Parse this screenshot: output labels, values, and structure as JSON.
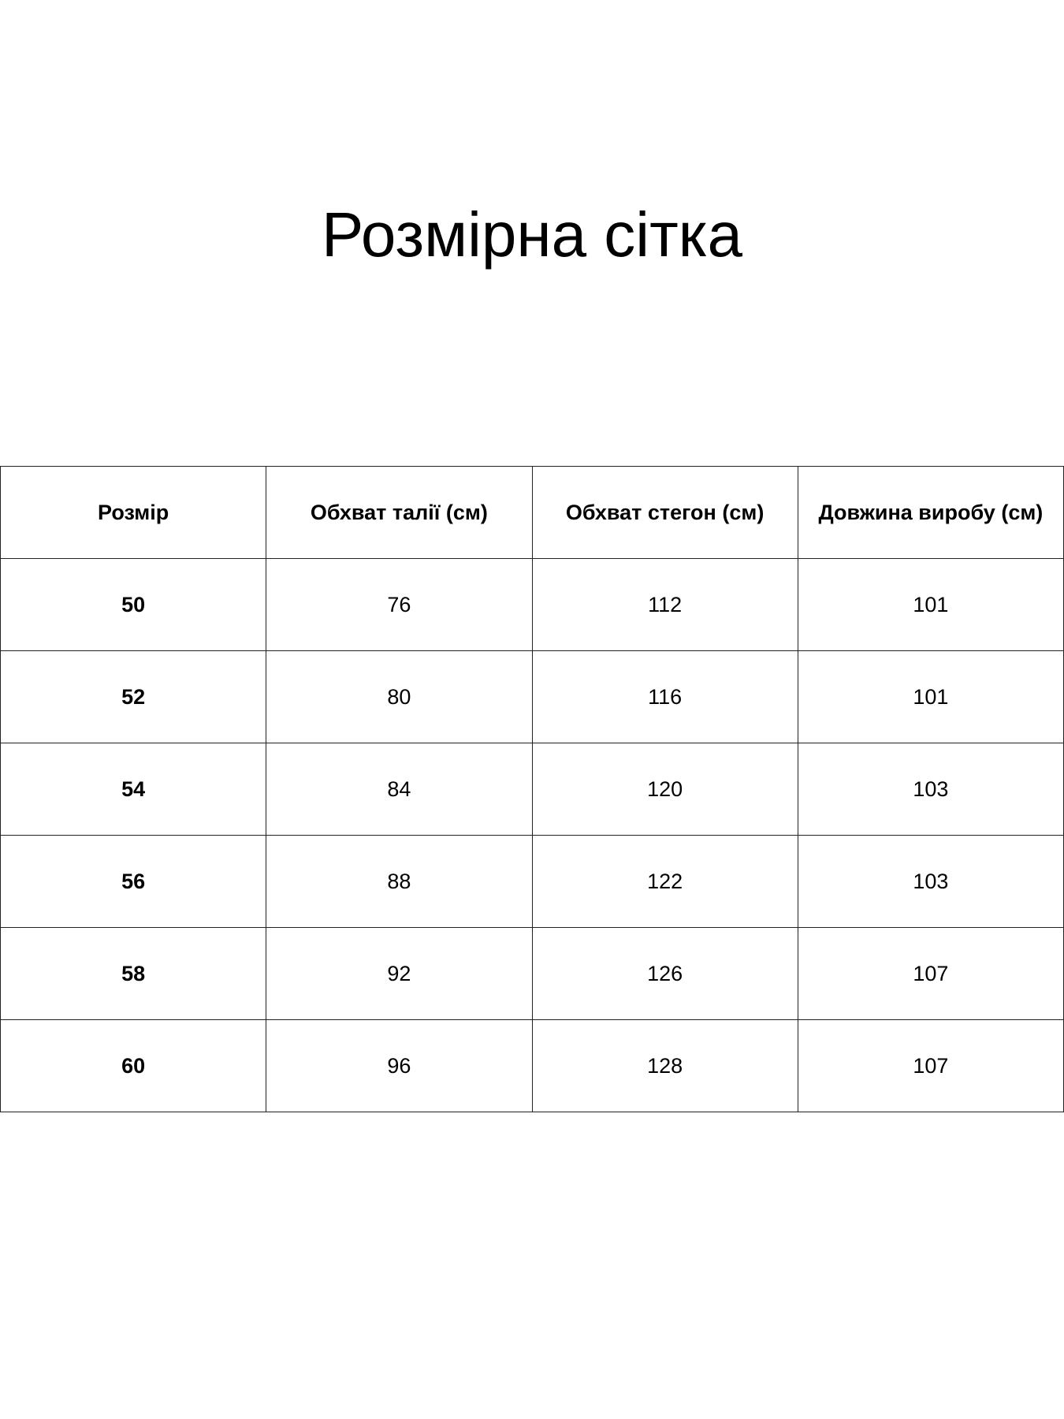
{
  "title": "Розмірна сітка",
  "table": {
    "headers": [
      "Розмір",
      "Обхват талії (см)",
      "Обхват стегон (см)",
      "Довжина виробу (см)"
    ],
    "rows": [
      [
        "50",
        "76",
        "112",
        "101"
      ],
      [
        "52",
        "80",
        "116",
        "101"
      ],
      [
        "54",
        "84",
        "120",
        "103"
      ],
      [
        "56",
        "88",
        "122",
        "103"
      ],
      [
        "58",
        "92",
        "126",
        "107"
      ],
      [
        "60",
        "96",
        "128",
        "107"
      ]
    ]
  }
}
